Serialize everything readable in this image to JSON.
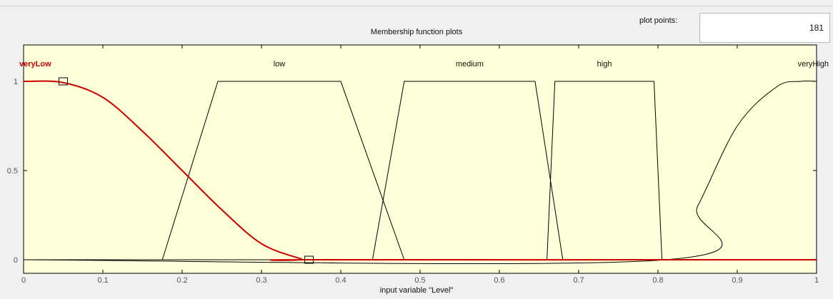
{
  "plot_points": {
    "label": "plot points:",
    "value": "181"
  },
  "chart_data": {
    "type": "line",
    "title": "Membership function plots",
    "xlabel": "input variable \"Level\"",
    "ylabel": "",
    "xlim": [
      0,
      1
    ],
    "ylim": [
      0,
      1
    ],
    "x_ticks": [
      "0",
      "0.1",
      "0.2",
      "0.3",
      "0.4",
      "0.5",
      "0.6",
      "0.7",
      "0.8",
      "0.9",
      "1"
    ],
    "y_ticks": [
      "0",
      "0.5",
      "1"
    ],
    "background": "#ffffd9",
    "selected_color": "#cc0000",
    "line_color": "#000000",
    "series": [
      {
        "name": "veryLow",
        "selected": true,
        "shape": "zmf",
        "x": [
          0,
          0.05,
          0.1,
          0.15,
          0.2,
          0.25,
          0.3,
          0.35,
          0.36,
          1
        ],
        "values": [
          1,
          0.993,
          0.91,
          0.72,
          0.5,
          0.28,
          0.09,
          0.005,
          0,
          0
        ],
        "handles": [
          0.05,
          0.36
        ]
      },
      {
        "name": "low",
        "shape": "trapmf",
        "x": [
          0.175,
          0.245,
          0.4,
          0.48
        ],
        "values": [
          0,
          1,
          1,
          0
        ]
      },
      {
        "name": "medium",
        "shape": "trapmf",
        "x": [
          0.44,
          0.48,
          0.645,
          0.68
        ],
        "values": [
          0,
          1,
          1,
          0
        ]
      },
      {
        "name": "high",
        "shape": "trapmf",
        "x": [
          0.66,
          0.67,
          0.795,
          0.805
        ],
        "values": [
          0,
          1,
          1,
          0
        ]
      },
      {
        "name": "veryHigh",
        "shape": "smf",
        "x": [
          0,
          0.81,
          0.85,
          0.9,
          0.95,
          0.98,
          1
        ],
        "values": [
          0,
          0,
          0.3,
          0.75,
          0.97,
          1,
          1
        ]
      }
    ]
  }
}
